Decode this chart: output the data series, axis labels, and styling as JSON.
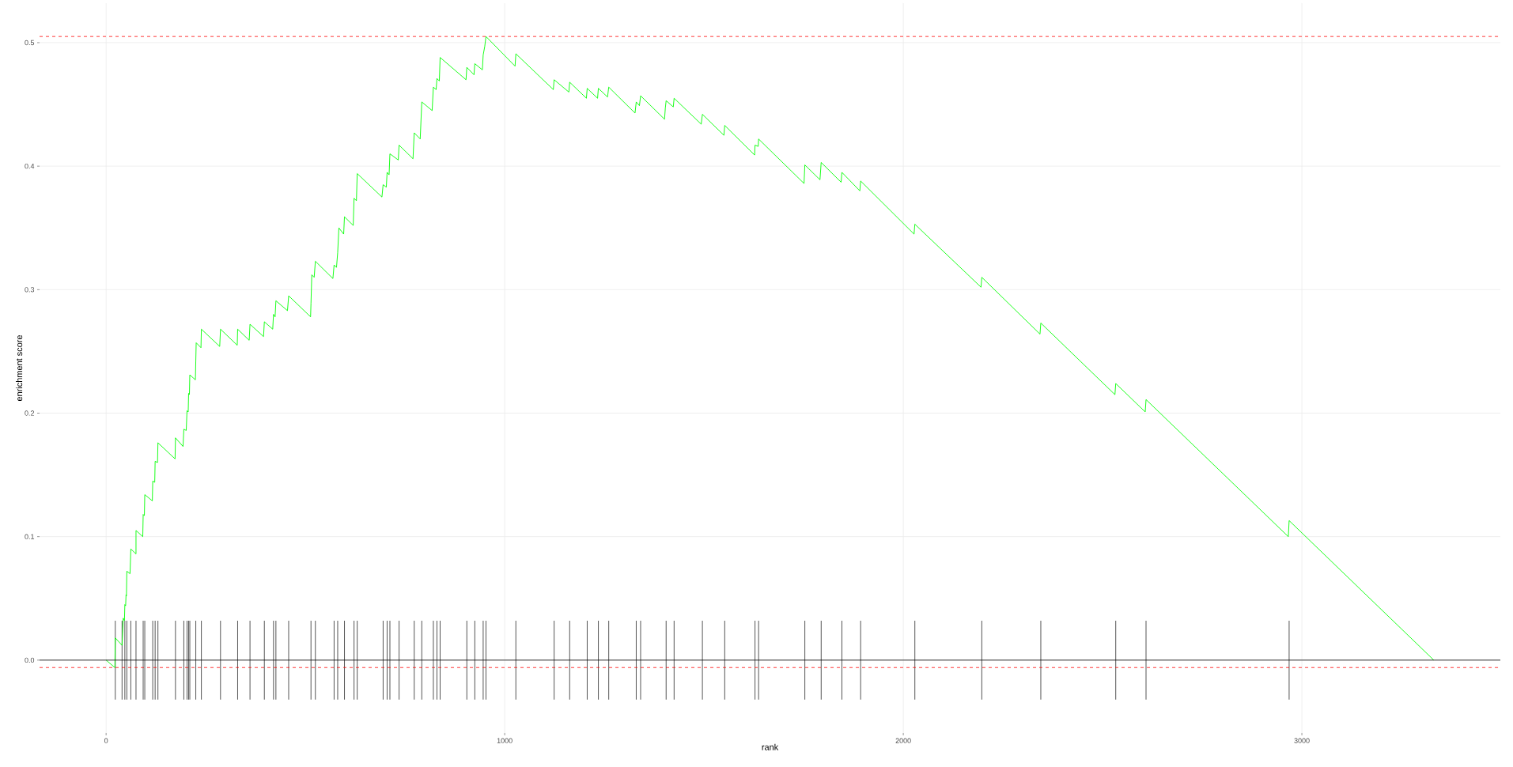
{
  "chart_data": {
    "type": "line",
    "xlabel": "rank",
    "ylabel": "enrichment score",
    "xlim": [
      -167,
      3498
    ],
    "ylim": [
      -0.059,
      0.532
    ],
    "xticks": [
      0,
      1000,
      2000,
      3000
    ],
    "yticks": [
      {
        "value": 0,
        "label": "0.0"
      },
      0.1,
      0.2,
      0.3,
      0.4,
      0.5
    ],
    "grid": true,
    "series": [
      {
        "type": "bar",
        "color": "#555555",
        "x": [
          23,
          40,
          47,
          52,
          62,
          75,
          93,
          97,
          117,
          123,
          130,
          174,
          195,
          203,
          207,
          210,
          225,
          239,
          287,
          330,
          361,
          397,
          420,
          426,
          458,
          514,
          525,
          572,
          581,
          598,
          622,
          630,
          695,
          705,
          712,
          735,
          773,
          792,
          821,
          830,
          838,
          905,
          925,
          946,
          953,
          1028,
          1124,
          1163,
          1207,
          1235,
          1261,
          1330,
          1341,
          1405,
          1425,
          1496,
          1552,
          1628,
          1637,
          1753,
          1794,
          1846,
          1893,
          2029,
          2197,
          2345,
          2533,
          2609,
          2968
        ],
        "base": [
          -0.032,
          -0.032,
          -0.032,
          -0.032,
          -0.032,
          -0.032,
          -0.032,
          -0.032,
          -0.032,
          -0.032,
          -0.032,
          -0.032,
          -0.032,
          -0.032,
          -0.032,
          -0.032,
          -0.032,
          -0.032,
          -0.032,
          -0.032,
          -0.032,
          -0.032,
          -0.032,
          -0.032,
          -0.032,
          -0.032,
          -0.032,
          -0.032,
          -0.032,
          -0.032,
          -0.032,
          -0.032,
          -0.032,
          -0.032,
          -0.032,
          -0.032,
          -0.032,
          -0.032,
          -0.032,
          -0.032,
          -0.032,
          -0.032,
          -0.032,
          -0.032,
          -0.032,
          -0.032,
          -0.032,
          -0.032,
          -0.032,
          -0.032,
          -0.032,
          -0.032,
          -0.032,
          -0.032,
          -0.032,
          -0.032,
          -0.032,
          -0.032,
          -0.032,
          -0.032,
          -0.032,
          -0.032,
          -0.032,
          -0.032,
          -0.032,
          -0.032,
          -0.032,
          -0.032,
          -0.032
        ],
        "values": [
          0.064,
          0.064,
          0.064,
          0.064,
          0.064,
          0.064,
          0.064,
          0.064,
          0.064,
          0.064,
          0.064,
          0.064,
          0.064,
          0.064,
          0.064,
          0.064,
          0.064,
          0.064,
          0.064,
          0.064,
          0.064,
          0.064,
          0.064,
          0.064,
          0.064,
          0.064,
          0.064,
          0.064,
          0.064,
          0.064,
          0.064,
          0.064,
          0.064,
          0.064,
          0.064,
          0.064,
          0.064,
          0.064,
          0.064,
          0.064,
          0.064,
          0.064,
          0.064,
          0.064,
          0.064,
          0.064,
          0.064,
          0.064,
          0.064,
          0.064,
          0.064,
          0.064,
          0.064,
          0.064,
          0.064,
          0.064,
          0.064,
          0.064,
          0.064,
          0.064,
          0.064,
          0.064,
          0.064,
          0.064,
          0.064,
          0.064,
          0.064,
          0.064,
          0.064
        ]
      },
      {
        "color": "#00ff00",
        "x": [
          0,
          22,
          23,
          40,
          43,
          46,
          47,
          49,
          50,
          51,
          52,
          60,
          62,
          75,
          75,
          92,
          93,
          96,
          97,
          116,
          117,
          122,
          123,
          129,
          130,
          173,
          174,
          193,
          195,
          201,
          203,
          206,
          207,
          209,
          210,
          224,
          225,
          226,
          238,
          239,
          285,
          287,
          329,
          330,
          359,
          361,
          395,
          397,
          418,
          420,
          424,
          426,
          455,
          458,
          513,
          514,
          516,
          522,
          525,
          569,
          572,
          578,
          581,
          584,
          596,
          598,
          620,
          622,
          628,
          630,
          692,
          695,
          703,
          705,
          710,
          712,
          733,
          735,
          770,
          773,
          788,
          792,
          818,
          821,
          828,
          830,
          836,
          838,
          903,
          905,
          923,
          925,
          944,
          946,
          950,
          953,
          1026,
          1028,
          1122,
          1124,
          1161,
          1163,
          1205,
          1207,
          1233,
          1235,
          1258,
          1261,
          1327,
          1330,
          1338,
          1341,
          1401,
          1403,
          1405,
          1423,
          1425,
          1493,
          1496,
          1550,
          1552,
          1627,
          1628,
          1636,
          1637,
          1751,
          1753,
          1791,
          1794,
          1844,
          1846,
          1891,
          1893,
          2027,
          2029,
          2195,
          2197,
          2343,
          2345,
          2531,
          2533,
          2607,
          2609,
          2966,
          2968,
          3331
        ],
        "values": [
          0,
          -0.006,
          0.018,
          0.012,
          0.034,
          0.032,
          0.045,
          0.044,
          0.053,
          0.052,
          0.072,
          0.07,
          0.09,
          0.086,
          0.105,
          0.1,
          0.118,
          0.117,
          0.134,
          0.129,
          0.145,
          0.144,
          0.161,
          0.16,
          0.176,
          0.163,
          0.18,
          0.173,
          0.187,
          0.186,
          0.202,
          0.201,
          0.216,
          0.215,
          0.231,
          0.227,
          0.242,
          0.257,
          0.253,
          0.268,
          0.254,
          0.268,
          0.255,
          0.268,
          0.259,
          0.272,
          0.262,
          0.274,
          0.268,
          0.28,
          0.278,
          0.291,
          0.283,
          0.295,
          0.278,
          0.289,
          0.312,
          0.31,
          0.323,
          0.309,
          0.32,
          0.318,
          0.33,
          0.35,
          0.345,
          0.359,
          0.352,
          0.374,
          0.372,
          0.394,
          0.375,
          0.385,
          0.383,
          0.395,
          0.393,
          0.41,
          0.405,
          0.417,
          0.406,
          0.427,
          0.422,
          0.452,
          0.445,
          0.464,
          0.462,
          0.471,
          0.469,
          0.488,
          0.47,
          0.48,
          0.474,
          0.483,
          0.478,
          0.49,
          0.497,
          0.505,
          0.481,
          0.491,
          0.462,
          0.47,
          0.46,
          0.468,
          0.455,
          0.463,
          0.455,
          0.463,
          0.456,
          0.464,
          0.443,
          0.452,
          0.449,
          0.457,
          0.438,
          0.447,
          0.453,
          0.448,
          0.455,
          0.434,
          0.442,
          0.425,
          0.433,
          0.409,
          0.417,
          0.416,
          0.422,
          0.386,
          0.401,
          0.389,
          0.403,
          0.387,
          0.395,
          0.38,
          0.388,
          0.345,
          0.353,
          0.302,
          0.31,
          0.264,
          0.273,
          0.215,
          0.224,
          0.201,
          0.211,
          0.1,
          0.113,
          0
        ]
      }
    ],
    "ref_lines": [
      {
        "axis": "y",
        "value": 0,
        "color": "#000000",
        "line_style": "solid"
      },
      {
        "axis": "y",
        "value": 0.505,
        "color": "#ff0000",
        "line_style": "dashed"
      },
      {
        "axis": "y",
        "value": -0.006,
        "color": "#ff0000",
        "line_style": "dashed"
      }
    ]
  }
}
